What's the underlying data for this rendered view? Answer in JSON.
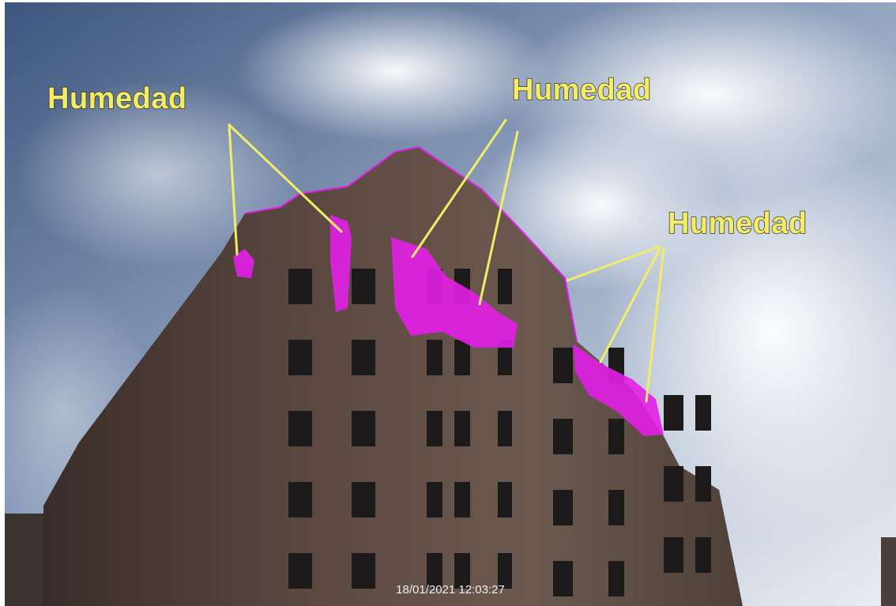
{
  "annotations": [
    {
      "label": "Humedad"
    },
    {
      "label": "Humedad"
    },
    {
      "label": "Humedad"
    }
  ],
  "timestamp": "18/01/2021 12:03:27"
}
